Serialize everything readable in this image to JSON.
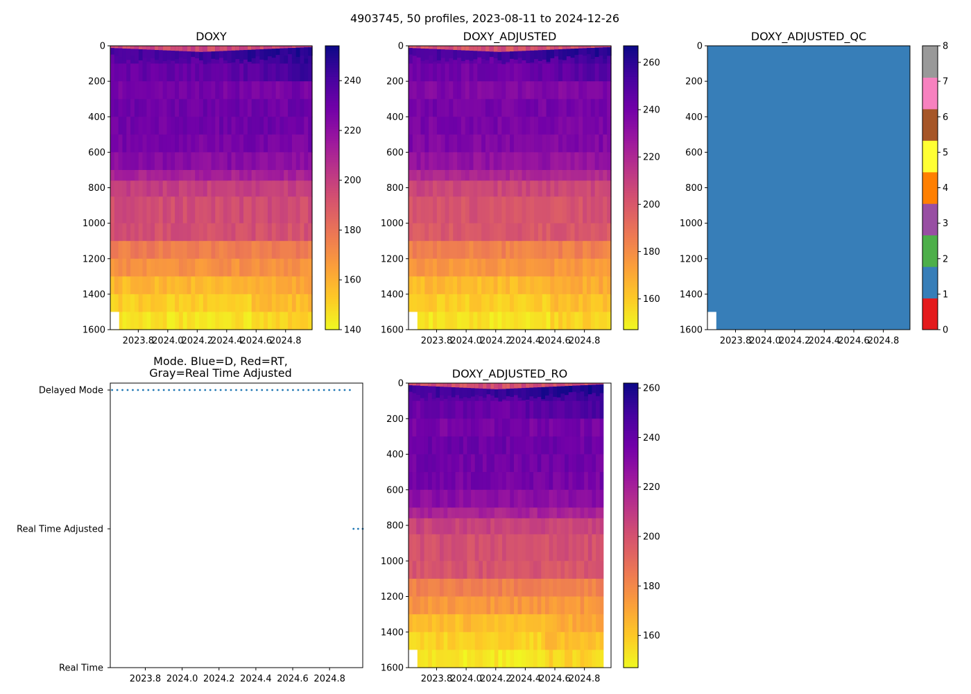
{
  "figure": {
    "suptitle": "4903745, 50 profiles, 2023-08-11 to 2024-12-26",
    "profile_count": 50,
    "date_start": "2023-08-11",
    "date_end": "2024-12-26"
  },
  "colors": {
    "nan_fill": "#ffffff",
    "mode_dots": "#1f77b4",
    "axis": "#000000"
  },
  "colormap": {
    "name": "plasma_r",
    "stops": [
      "#f0f921",
      "#fdca26",
      "#fb9f3a",
      "#ed7953",
      "#d8576b",
      "#bd3786",
      "#9c179e",
      "#7201a8",
      "#46039f",
      "#0d0887"
    ]
  },
  "chart_data": [
    {
      "id": "doxy",
      "type": "heatmap",
      "title": "DOXY",
      "xlabel": "",
      "ylabel": "",
      "x_ticks": [
        "2023.8",
        "2024.0",
        "2024.2",
        "2024.4",
        "2024.6",
        "2024.8"
      ],
      "x_tick_values": [
        2023.8,
        2024.0,
        2024.2,
        2024.4,
        2024.6,
        2024.8
      ],
      "xlim": [
        2023.61,
        2024.98
      ],
      "y_ticks": [
        "0",
        "200",
        "400",
        "600",
        "800",
        "1000",
        "1200",
        "1400",
        "1600"
      ],
      "y_tick_values": [
        0,
        200,
        400,
        600,
        800,
        1000,
        1200,
        1400,
        1600
      ],
      "ylim": [
        1600,
        0
      ],
      "colorbar": {
        "vmin": 140,
        "vmax": 254,
        "ticks": [
          "140",
          "160",
          "180",
          "200",
          "220",
          "240"
        ],
        "tick_values": [
          140,
          160,
          180,
          200,
          220,
          240
        ]
      },
      "depth_bands": [
        {
          "top": 0,
          "bottom": 100,
          "value": 236
        },
        {
          "top": 100,
          "bottom": 200,
          "value": 232
        },
        {
          "top": 200,
          "bottom": 300,
          "value": 227
        },
        {
          "top": 300,
          "bottom": 400,
          "value": 230
        },
        {
          "top": 400,
          "bottom": 500,
          "value": 229
        },
        {
          "top": 500,
          "bottom": 600,
          "value": 227
        },
        {
          "top": 600,
          "bottom": 700,
          "value": 222
        },
        {
          "top": 700,
          "bottom": 760,
          "value": 212
        },
        {
          "top": 760,
          "bottom": 850,
          "value": 200
        },
        {
          "top": 850,
          "bottom": 1000,
          "value": 195
        },
        {
          "top": 1000,
          "bottom": 1100,
          "value": 193
        },
        {
          "top": 1100,
          "bottom": 1200,
          "value": 177
        },
        {
          "top": 1200,
          "bottom": 1300,
          "value": 170
        },
        {
          "top": 1300,
          "bottom": 1400,
          "value": 158
        },
        {
          "top": 1400,
          "bottom": 1500,
          "value": 152
        },
        {
          "top": 1500,
          "bottom": 1600,
          "value": 146
        }
      ],
      "surface_low": 196,
      "surface_high": 250,
      "missing_corner": {
        "x_end": 2023.67,
        "depth_from": 1500
      }
    },
    {
      "id": "doxy-adjusted",
      "type": "heatmap",
      "title": "DOXY_ADJUSTED",
      "xlabel": "",
      "ylabel": "",
      "x_ticks": [
        "2023.8",
        "2024.0",
        "2024.2",
        "2024.4",
        "2024.6",
        "2024.8"
      ],
      "x_tick_values": [
        2023.8,
        2024.0,
        2024.2,
        2024.4,
        2024.6,
        2024.8
      ],
      "xlim": [
        2023.61,
        2024.98
      ],
      "y_ticks": [
        "0",
        "200",
        "400",
        "600",
        "800",
        "1000",
        "1200",
        "1400",
        "1600"
      ],
      "y_tick_values": [
        0,
        200,
        400,
        600,
        800,
        1000,
        1200,
        1400,
        1600
      ],
      "ylim": [
        1600,
        0
      ],
      "colorbar": {
        "vmin": 147,
        "vmax": 267,
        "ticks": [
          "160",
          "180",
          "200",
          "220",
          "240",
          "260"
        ],
        "tick_values": [
          160,
          180,
          200,
          220,
          240,
          260
        ]
      },
      "depth_bands": [
        {
          "top": 0,
          "bottom": 100,
          "value": 244
        },
        {
          "top": 100,
          "bottom": 200,
          "value": 240
        },
        {
          "top": 200,
          "bottom": 300,
          "value": 236
        },
        {
          "top": 300,
          "bottom": 400,
          "value": 239
        },
        {
          "top": 400,
          "bottom": 500,
          "value": 238
        },
        {
          "top": 500,
          "bottom": 600,
          "value": 236
        },
        {
          "top": 600,
          "bottom": 700,
          "value": 230
        },
        {
          "top": 700,
          "bottom": 760,
          "value": 220
        },
        {
          "top": 760,
          "bottom": 850,
          "value": 207
        },
        {
          "top": 850,
          "bottom": 1000,
          "value": 202
        },
        {
          "top": 1000,
          "bottom": 1100,
          "value": 200
        },
        {
          "top": 1100,
          "bottom": 1200,
          "value": 184
        },
        {
          "top": 1200,
          "bottom": 1300,
          "value": 176
        },
        {
          "top": 1300,
          "bottom": 1400,
          "value": 165
        },
        {
          "top": 1400,
          "bottom": 1500,
          "value": 159
        },
        {
          "top": 1500,
          "bottom": 1600,
          "value": 153
        }
      ],
      "surface_low": 202,
      "surface_high": 262,
      "missing_corner": {
        "x_end": 2023.67,
        "depth_from": 1500
      }
    },
    {
      "id": "doxy-adjusted-qc",
      "type": "heatmap",
      "title": "DOXY_ADJUSTED_QC",
      "xlabel": "",
      "ylabel": "",
      "x_ticks": [
        "2023.8",
        "2024.0",
        "2024.2",
        "2024.4",
        "2024.6",
        "2024.8"
      ],
      "x_tick_values": [
        2023.8,
        2024.0,
        2024.2,
        2024.4,
        2024.6,
        2024.8
      ],
      "xlim": [
        2023.61,
        2024.98
      ],
      "y_ticks": [
        "0",
        "200",
        "400",
        "600",
        "800",
        "1000",
        "1200",
        "1400",
        "1600"
      ],
      "y_tick_values": [
        0,
        200,
        400,
        600,
        800,
        1000,
        1200,
        1400,
        1600
      ],
      "ylim": [
        1600,
        0
      ],
      "qc_value": 1,
      "colorbar": {
        "vmin": 0,
        "vmax": 8,
        "ticks": [
          "0",
          "1",
          "2",
          "3",
          "4",
          "5",
          "6",
          "7",
          "8"
        ],
        "tick_values": [
          0,
          1,
          2,
          3,
          4,
          5,
          6,
          7,
          8
        ],
        "categories": [
          {
            "label": "0",
            "color": "#e41a1c"
          },
          {
            "label": "1",
            "color": "#377eb8"
          },
          {
            "label": "2",
            "color": "#4daf4a"
          },
          {
            "label": "3",
            "color": "#984ea3"
          },
          {
            "label": "4",
            "color": "#ff7f00"
          },
          {
            "label": "5",
            "color": "#ffff33"
          },
          {
            "label": "6",
            "color": "#a65628"
          },
          {
            "label": "7",
            "color": "#f781bf"
          },
          {
            "label": "8",
            "color": "#999999"
          }
        ]
      },
      "missing_corner": {
        "x_end": 2023.67,
        "depth_from": 1500
      }
    },
    {
      "id": "mode",
      "type": "scatter",
      "title_lines": [
        "Mode. Blue=D, Red=RT,",
        "Gray=Real Time Adjusted"
      ],
      "xlabel": "",
      "ylabel": "",
      "x_ticks": [
        "2023.8",
        "2024.0",
        "2024.2",
        "2024.4",
        "2024.6",
        "2024.8"
      ],
      "x_tick_values": [
        2023.8,
        2024.0,
        2024.2,
        2024.4,
        2024.6,
        2024.8
      ],
      "xlim": [
        2023.61,
        2024.98
      ],
      "y_categories": [
        "Real Time",
        "Real Time Adjusted",
        "Delayed Mode"
      ],
      "ylim": [
        0,
        2.05
      ],
      "series": [
        {
          "name": "Delayed Mode",
          "level": 2,
          "x_start": 2023.62,
          "x_end": 2024.91,
          "count": 47
        },
        {
          "name": "Real Time Adjusted",
          "level": 1,
          "x_start": 2024.93,
          "x_end": 2024.98,
          "count": 3
        }
      ]
    },
    {
      "id": "doxy-adjusted-ro",
      "type": "heatmap",
      "title": "DOXY_ADJUSTED_RO",
      "xlabel": "",
      "ylabel": "",
      "x_ticks": [
        "2023.8",
        "2024.0",
        "2024.2",
        "2024.4",
        "2024.6",
        "2024.8"
      ],
      "x_tick_values": [
        2023.8,
        2024.0,
        2024.2,
        2024.4,
        2024.6,
        2024.8
      ],
      "xlim": [
        2023.61,
        2024.98
      ],
      "y_ticks": [
        "0",
        "200",
        "400",
        "600",
        "800",
        "1000",
        "1200",
        "1400",
        "1600"
      ],
      "y_tick_values": [
        0,
        200,
        400,
        600,
        800,
        1000,
        1200,
        1400,
        1600
      ],
      "ylim": [
        1600,
        0
      ],
      "data_x_end": 2024.93,
      "colorbar": {
        "vmin": 147,
        "vmax": 262,
        "ticks": [
          "160",
          "180",
          "200",
          "220",
          "240",
          "260"
        ],
        "tick_values": [
          160,
          180,
          200,
          220,
          240,
          260
        ]
      },
      "depth_bands": [
        {
          "top": 0,
          "bottom": 100,
          "value": 243
        },
        {
          "top": 100,
          "bottom": 200,
          "value": 239
        },
        {
          "top": 200,
          "bottom": 300,
          "value": 235
        },
        {
          "top": 300,
          "bottom": 400,
          "value": 238
        },
        {
          "top": 400,
          "bottom": 500,
          "value": 237
        },
        {
          "top": 500,
          "bottom": 600,
          "value": 235
        },
        {
          "top": 600,
          "bottom": 700,
          "value": 229
        },
        {
          "top": 700,
          "bottom": 760,
          "value": 219
        },
        {
          "top": 760,
          "bottom": 850,
          "value": 206
        },
        {
          "top": 850,
          "bottom": 1000,
          "value": 201
        },
        {
          "top": 1000,
          "bottom": 1100,
          "value": 199
        },
        {
          "top": 1100,
          "bottom": 1200,
          "value": 183
        },
        {
          "top": 1200,
          "bottom": 1300,
          "value": 175
        },
        {
          "top": 1300,
          "bottom": 1400,
          "value": 164
        },
        {
          "top": 1400,
          "bottom": 1500,
          "value": 158
        },
        {
          "top": 1500,
          "bottom": 1600,
          "value": 152
        }
      ],
      "surface_low": 201,
      "surface_high": 260,
      "missing_corner": {
        "x_end": 2023.67,
        "depth_from": 1500
      }
    }
  ]
}
